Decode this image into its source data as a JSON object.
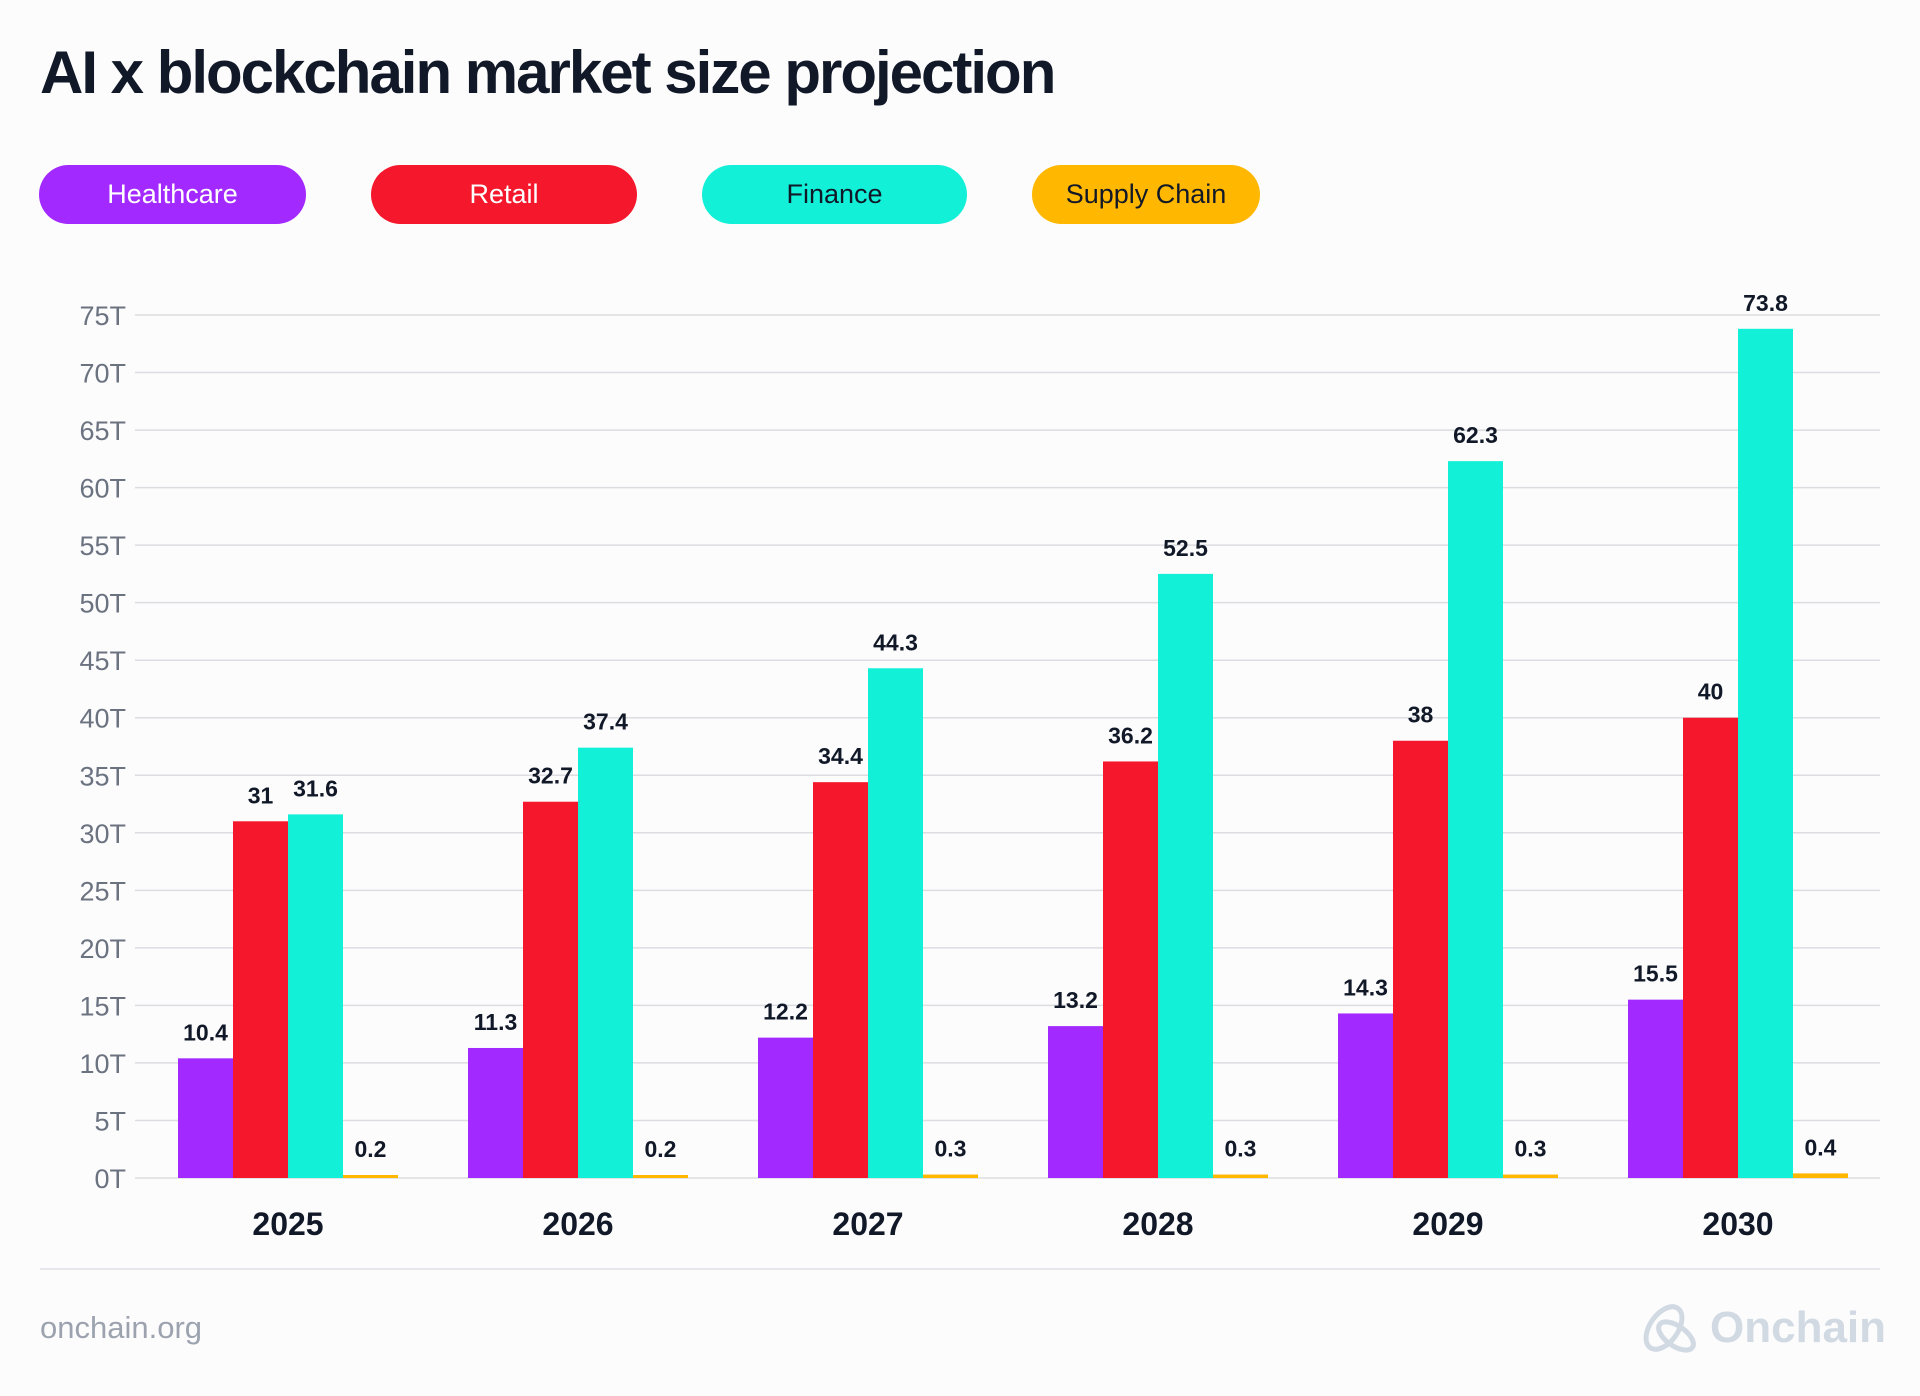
{
  "footer": {
    "url": "onchain.org",
    "logo_text": "Onchain"
  },
  "chart_data": {
    "type": "bar",
    "title": "AI x blockchain market size projection",
    "categories": [
      "2025",
      "2026",
      "2027",
      "2028",
      "2029",
      "2030"
    ],
    "series": [
      {
        "name": "Healthcare",
        "color": "#a229ff",
        "text_color": "#ffffff",
        "values": [
          10.4,
          11.3,
          12.2,
          13.2,
          14.3,
          15.5
        ]
      },
      {
        "name": "Retail",
        "color": "#f5172b",
        "text_color": "#ffffff",
        "values": [
          31,
          32.7,
          34.4,
          36.2,
          38,
          40
        ]
      },
      {
        "name": "Finance",
        "color": "#12f0d8",
        "text_color": "#111827",
        "values": [
          31.6,
          37.4,
          44.3,
          52.5,
          62.3,
          73.8
        ]
      },
      {
        "name": "Supply Chain",
        "color": "#ffb700",
        "text_color": "#111827",
        "values": [
          0.2,
          0.2,
          0.3,
          0.3,
          0.3,
          0.4
        ]
      }
    ],
    "yticks": [
      "0T",
      "5T",
      "10T",
      "15T",
      "20T",
      "25T",
      "30T",
      "35T",
      "40T",
      "45T",
      "50T",
      "55T",
      "60T",
      "65T",
      "70T",
      "75T"
    ],
    "ylim": [
      0,
      75
    ],
    "grid": true,
    "legend_position": "top-left",
    "data_labels": true
  }
}
